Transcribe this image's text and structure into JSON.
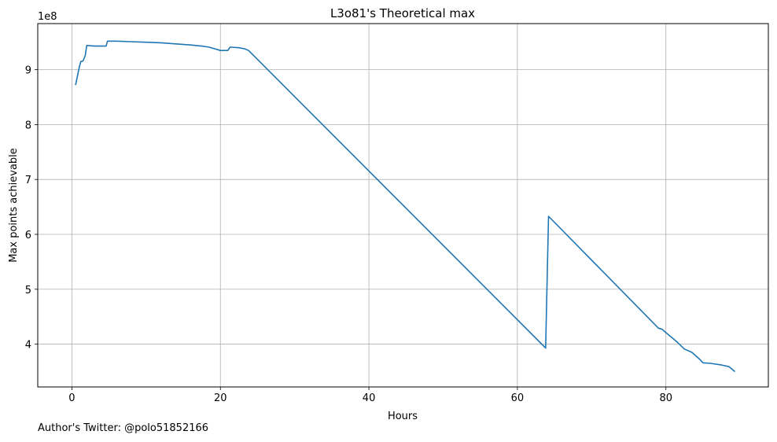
{
  "chart_data": {
    "type": "line",
    "title": "L3o81's Theoretical max",
    "xlabel": "Hours",
    "ylabel": "Max points achievable",
    "y_offset_label": "1e8",
    "xlim": [
      -4.6,
      93.8
    ],
    "ylim": [
      3.22,
      9.84
    ],
    "xticks": [
      0,
      20,
      40,
      60,
      80
    ],
    "yticks": [
      4,
      5,
      6,
      7,
      8,
      9
    ],
    "grid": true,
    "line_color": "#1f77b4",
    "series": [
      {
        "x": [
          0.5,
          1.0,
          1.2,
          1.5,
          1.8,
          2.0,
          2.2,
          3.0,
          4.0,
          4.6,
          4.8,
          6.0,
          8.0,
          10.0,
          12.0,
          14.0,
          16.0,
          17.5,
          18.5,
          19.0,
          20.0,
          21.0,
          21.3,
          21.5,
          22.5,
          23.3,
          23.8,
          63.8,
          64.2,
          79.0,
          79.5,
          80.0,
          81.5,
          82.5,
          83.5,
          84.5,
          85.0,
          86.0,
          87.5,
          88.5,
          89.3
        ],
        "y": [
          8.72,
          9.05,
          9.15,
          9.16,
          9.26,
          9.44,
          9.44,
          9.43,
          9.43,
          9.43,
          9.52,
          9.52,
          9.51,
          9.5,
          9.49,
          9.47,
          9.45,
          9.43,
          9.41,
          9.39,
          9.35,
          9.35,
          9.41,
          9.41,
          9.4,
          9.38,
          9.35,
          3.93,
          6.33,
          4.29,
          4.27,
          4.21,
          4.04,
          3.91,
          3.85,
          3.73,
          3.66,
          3.65,
          3.62,
          3.59,
          3.5
        ]
      }
    ]
  },
  "footer": "Author's Twitter: @polo51852166"
}
